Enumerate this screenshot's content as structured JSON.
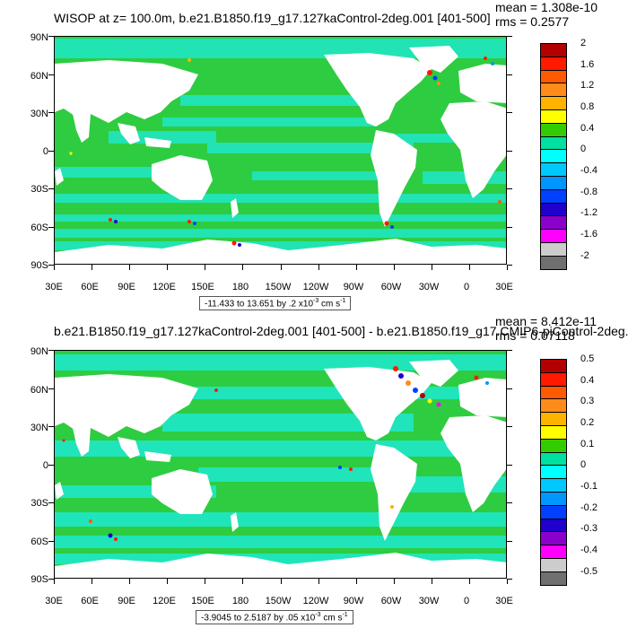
{
  "panels": [
    {
      "title": "WISOP at z= 100.0m, b.e21.B1850.f19_g17.127kaControl-2deg.001 [401-500]",
      "stats": {
        "mean": "mean = 1.308e-10",
        "rms": "rms = 0.2577"
      },
      "range_prefix": "-11.433 to 13.651 by .2 x10",
      "range_exp": "-3",
      "range_suffix": " cm s",
      "range_suffix_exp": "-1",
      "colorbar_labels": [
        "2",
        "1.6",
        "1.2",
        "0.8",
        "0.4",
        "0",
        "-0.4",
        "-0.8",
        "-1.2",
        "-1.6",
        "-2"
      ]
    },
    {
      "title": "b.e21.B1850.f19_g17.127kaControl-2deg.001 [401-500] - b.e21.B1850.f19_g17.CMIP6-piControl-2deg.0",
      "stats": {
        "mean": "mean = 8.412e-11",
        "rms": "rms = 0.07118"
      },
      "range_prefix": "-3.9045 to 2.5187 by .05 x10",
      "range_exp": "-3",
      "range_suffix": " cm s",
      "range_suffix_exp": "-1",
      "colorbar_labels": [
        "0.5",
        "0.4",
        "0.3",
        "0.2",
        "0.1",
        "0",
        "-0.1",
        "-0.2",
        "-0.3",
        "-0.4",
        "-0.5"
      ]
    }
  ],
  "lat_labels": [
    "90N",
    "60N",
    "30N",
    "0",
    "30S",
    "60S",
    "90S"
  ],
  "lon_labels": [
    "30E",
    "60E",
    "90E",
    "120E",
    "150E",
    "180",
    "150W",
    "120W",
    "90W",
    "60W",
    "30W",
    "0",
    "30E"
  ],
  "colors": {
    "ocean_main": "#2ecc40",
    "ocean_cyan": "#1fe8c8",
    "land": "#ffffff",
    "colorbar": [
      "#b30000",
      "#ff1a00",
      "#ff5a00",
      "#ff8c1a",
      "#ffb300",
      "#ffff00",
      "#33cc00",
      "#00e0a0",
      "#00ffff",
      "#00c8ff",
      "#0096ff",
      "#0040ff",
      "#1f00cc",
      "#8c00cc",
      "#ff00ff",
      "#cccccc",
      "#707070"
    ]
  }
}
